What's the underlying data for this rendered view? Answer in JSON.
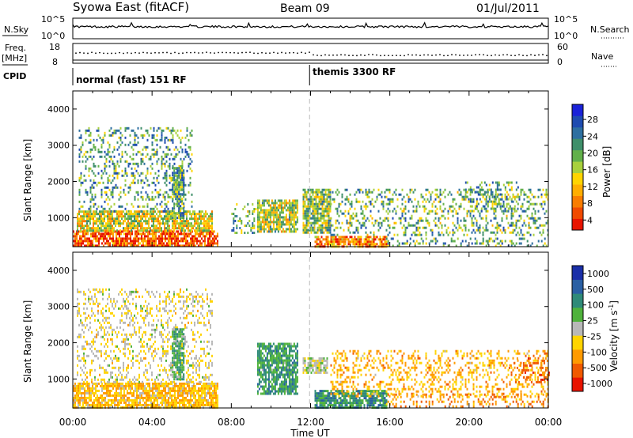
{
  "header": {
    "station": "Syowa East (fitACF)",
    "beam": "Beam 09",
    "date": "01/Jul/2011"
  },
  "params": {
    "nsky_label": "N.Sky",
    "nsearch_label": "N.Search",
    "log_top": "10^5",
    "log_bottom": "10^0",
    "freq_label": "Freq.",
    "freq_unit": "[MHz]",
    "freq_top": "18",
    "freq_bottom": "8",
    "nave_label": "Nave",
    "nave_top": "60",
    "nave_bottom": "0",
    "cpid_label": "CPID",
    "cpid_segments": [
      "normal (fast) 151 RF",
      "themis 3300 RF"
    ],
    "cpid_switch_hour": 11.95
  },
  "colors": {
    "power_scale": [
      "#1a22d8",
      "#1e4bb0",
      "#2e6fa0",
      "#3f8f6a",
      "#62b04a",
      "#a8d03c",
      "#ffd400",
      "#ffae00",
      "#f97d00",
      "#f04a00",
      "#e81400"
    ],
    "velocity_scale": [
      "#1a2fa8",
      "#2a5fa3",
      "#2f8a78",
      "#4fb23c",
      "#b8b8b8",
      "#ffd400",
      "#ff9a00",
      "#f05a00",
      "#e81400"
    ],
    "dashed_line": "#bbbbbb"
  },
  "chart_data": [
    {
      "type": "heatmap",
      "parameter": "Power",
      "colorbar_title": "Power [dB]",
      "colorbar_ticks": [
        "28",
        "24",
        "20",
        "16",
        "12",
        "8",
        "4"
      ],
      "colorbar_range": [
        0,
        30
      ],
      "ylabel": "Slant Range [km]",
      "xlabel": "Time UT",
      "y_ticks": [
        "1000",
        "2000",
        "3000",
        "4000"
      ],
      "ylim": [
        200,
        4500
      ],
      "xlim_hours": [
        0,
        24
      ],
      "x_ticks": [
        "00:00",
        "04:00",
        "08:00",
        "12:00",
        "16:00",
        "20:00",
        "00:00"
      ],
      "x_tick_hours": [
        0,
        4,
        8,
        12,
        16,
        20,
        24
      ],
      "features": [
        {
          "t0": 0.0,
          "t1": 7.3,
          "r0": 220,
          "r1": 650,
          "level": 0.85
        },
        {
          "t0": 0.2,
          "t1": 7.0,
          "r0": 650,
          "r1": 1200,
          "level": 0.55
        },
        {
          "t0": 0.3,
          "t1": 6.0,
          "r0": 1200,
          "r1": 3500,
          "level": 0.35,
          "sparse": true
        },
        {
          "t0": 5.0,
          "t1": 5.6,
          "r0": 1000,
          "r1": 2400,
          "level": 0.35
        },
        {
          "t0": 8.0,
          "t1": 9.2,
          "r0": 600,
          "r1": 1400,
          "level": 0.4,
          "sparse": true
        },
        {
          "t0": 9.3,
          "t1": 11.3,
          "r0": 600,
          "r1": 1500,
          "level": 0.5
        },
        {
          "t0": 11.6,
          "t1": 13.0,
          "r0": 600,
          "r1": 1800,
          "level": 0.45
        },
        {
          "t0": 12.2,
          "t1": 15.8,
          "r0": 220,
          "r1": 500,
          "level": 0.75
        },
        {
          "t0": 13.0,
          "t1": 24.0,
          "r0": 500,
          "r1": 1800,
          "level": 0.4,
          "sparse": true
        },
        {
          "t0": 15.8,
          "t1": 24.0,
          "r0": 220,
          "r1": 450,
          "level": 0.35,
          "sparse": true
        },
        {
          "t0": 19.8,
          "t1": 22.5,
          "r0": 1200,
          "r1": 2000,
          "level": 0.35,
          "sparse": true
        }
      ]
    },
    {
      "type": "heatmap",
      "parameter": "Velocity",
      "colorbar_title": "Velocity [m s^-1]",
      "colorbar_ticks": [
        "1000",
        "500",
        "100",
        "25",
        "-25",
        "-100",
        "-500",
        "-1000"
      ],
      "colorbar_range": [
        -1000,
        1000
      ],
      "ylabel": "Slant Range [km]",
      "xlabel": "Time UT",
      "y_ticks": [
        "1000",
        "2000",
        "3000",
        "4000"
      ],
      "ylim": [
        200,
        4500
      ],
      "xlim_hours": [
        0,
        24
      ],
      "x_ticks": [
        "00:00",
        "04:00",
        "08:00",
        "12:00",
        "16:00",
        "20:00",
        "00:00"
      ],
      "x_tick_hours": [
        0,
        4,
        8,
        12,
        16,
        20,
        24
      ],
      "features": [
        {
          "t0": 0.0,
          "t1": 7.3,
          "r0": 220,
          "r1": 900,
          "level": -0.3
        },
        {
          "t0": 0.2,
          "t1": 7.0,
          "r0": 900,
          "r1": 3500,
          "level": -0.1,
          "sparse": true
        },
        {
          "t0": 5.0,
          "t1": 5.6,
          "r0": 1000,
          "r1": 2400,
          "level": 0.3
        },
        {
          "t0": 9.3,
          "t1": 11.3,
          "r0": 600,
          "r1": 2000,
          "level": 0.35
        },
        {
          "t0": 11.6,
          "t1": 12.8,
          "r0": 1200,
          "r1": 1600,
          "level": 0.0
        },
        {
          "t0": 12.2,
          "t1": 15.8,
          "r0": 220,
          "r1": 700,
          "level": 0.4
        },
        {
          "t0": 13.0,
          "t1": 24.0,
          "r0": 500,
          "r1": 1800,
          "level": -0.35,
          "sparse": true
        },
        {
          "t0": 15.8,
          "t1": 24.0,
          "r0": 220,
          "r1": 600,
          "level": -0.5,
          "sparse": true
        },
        {
          "t0": 22.0,
          "t1": 24.0,
          "r0": 900,
          "r1": 1600,
          "level": -0.6,
          "sparse": true
        }
      ]
    }
  ]
}
